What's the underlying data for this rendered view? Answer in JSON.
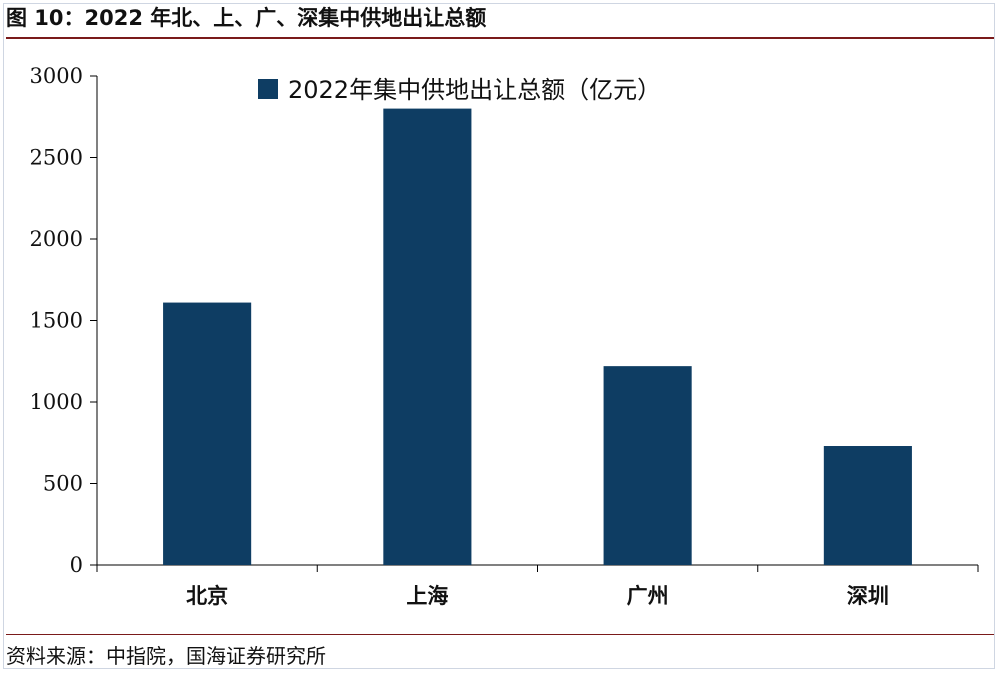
{
  "figure_title": "图 10：2022 年北、上、广、深集中供地出让总额",
  "source_note": "资料来源：中指院，国海证券研究所",
  "colors": {
    "bar": "#0e3d63",
    "axis": "#000000",
    "rule": "#7a1a1a"
  },
  "chart_data": {
    "type": "bar",
    "categories": [
      "北京",
      "上海",
      "广州",
      "深圳"
    ],
    "series": [
      {
        "name": "2022年集中供地出让总额（亿元）",
        "values": [
          1610,
          2800,
          1220,
          730
        ]
      }
    ],
    "ylim": [
      0,
      3000
    ],
    "yticks": [
      0,
      500,
      1000,
      1500,
      2000,
      2500,
      3000
    ],
    "grid": false,
    "legend": "top-center",
    "xlabel": "",
    "ylabel": ""
  }
}
